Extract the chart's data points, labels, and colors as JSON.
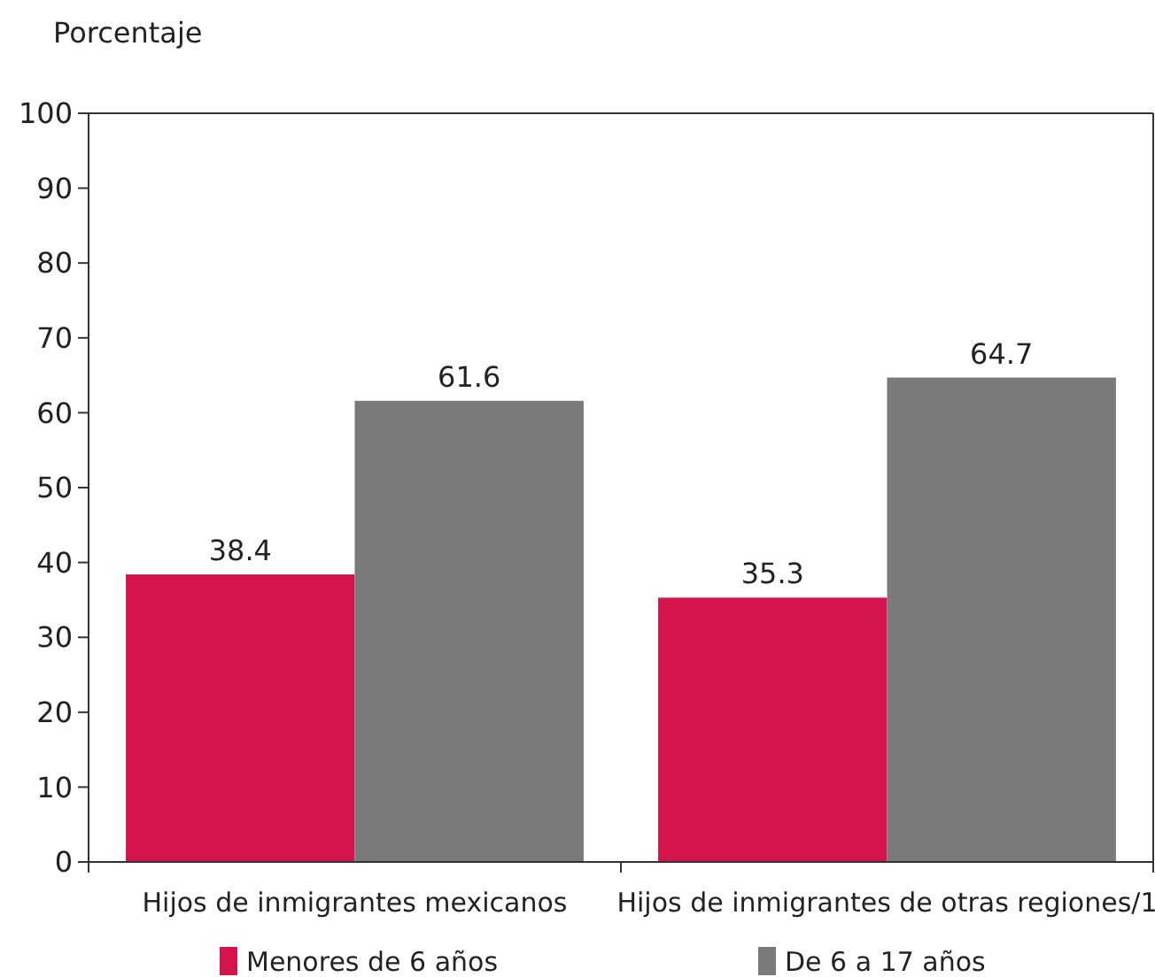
{
  "chart_data": {
    "type": "bar",
    "ylabel": "Porcentaje",
    "categories": [
      "Hijos de inmigrantes mexicanos",
      "Hijos de inmigrantes de otras regiones/1"
    ],
    "series": [
      {
        "name": "Menores de 6 años",
        "color": "#d4144a",
        "values": [
          38.4,
          35.3
        ]
      },
      {
        "name": "De 6 a 17 años",
        "color": "#7a7a7c",
        "values": [
          61.6,
          64.7
        ]
      }
    ],
    "ylim": [
      0,
      100
    ],
    "yticks": [
      0,
      10,
      20,
      30,
      40,
      50,
      60,
      70,
      80,
      90,
      100
    ],
    "data_labels": true,
    "legend": "bottom"
  }
}
